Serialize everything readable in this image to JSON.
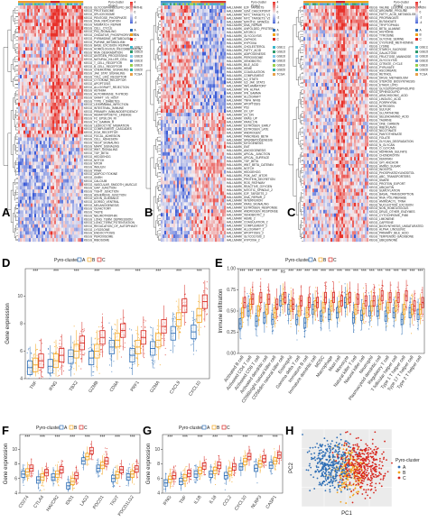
{
  "figure": {
    "panels": {
      "A": {
        "label": "A"
      },
      "B": {
        "label": "B"
      },
      "C": {
        "label": "C"
      },
      "D": {
        "label": "D"
      },
      "E": {
        "label": "E"
      },
      "F": {
        "label": "F"
      },
      "G": {
        "label": "G"
      },
      "H": {
        "label": "H"
      }
    },
    "heatmap_legend": {
      "row1": "Pyro-cluster",
      "row2": "Project",
      "scale": [
        "4",
        "2",
        "0",
        "-2",
        "-4"
      ],
      "cluster_keys": [
        "A",
        "B",
        "C"
      ],
      "project_keys": [
        "GSE13213",
        "GSE26939",
        "GSE30219",
        "GSE31210",
        "GSE37745",
        "GSE50081",
        "TCGA"
      ]
    },
    "heatmap_A_rows": [
      "KEGG_GLYCOSPHINGOLIPID_BIOSYNTHESIS",
      "KEGG_PROTEASOME",
      "KEGG_SPLICEOSOME",
      "KEGG_PENTOSE_PHOSPHATE",
      "KEGG_DNA_REPLICATION",
      "KEGG_MISMATCH_REPAIR",
      "KEGG_CELL_CYCLE",
      "KEGG_P53_SIGNALING",
      "KEGG_OXIDATIVE_PHOSPHORYLATION",
      "KEGG_PYRIMIDINE_METABOLISM",
      "KEGG_PURINE_METABOLISM",
      "KEGG_BASE_EXCISION_REPAIR",
      "KEGG_HOMOLOGOUS_RECOMBINATION",
      "KEGG_RNA_DEGRADATION",
      "KEGG_ANTIGEN_PROCESSING",
      "KEGG_NATURAL_KILLER_CELL",
      "KEGG_T_CELL_RECEPTOR",
      "KEGG_B_CELL_RECEPTOR",
      "KEGG_CHEMOKINE_SIGNALING",
      "KEGG_JAK_STAT_SIGNALING",
      "KEGG_TOLL_LIKE_RECEPTOR",
      "KEGG_CYTOKINE_RECEPTOR",
      "KEGG_APOPTOSIS",
      "KEGG_ALLOGRAFT_REJECTION",
      "KEGG_ASTHMA",
      "KEGG_AUTOIMMUNE_THYROID",
      "KEGG_GRAFT_VS_HOST",
      "KEGG_TYPE_I_DIABETES",
      "KEGG_LEISHMANIA_INFECTION",
      "KEGG_INTESTINAL_IMMUNE",
      "KEGG_PRIMARY_IMMUNODEFICIENCY",
      "KEGG_HEMATOPOIETIC_LINEAGE",
      "KEGG_FC_EPSILON_RI",
      "KEGG_FC_GAMMA_R",
      "KEGG_LEUKOCYTE_MIGRATION",
      "KEGG_COMPLEMENT_CASCADES",
      "KEGG_ECM_RECEPTOR",
      "KEGG_FOCAL_ADHESION",
      "KEGG_CELL_ADHESION",
      "KEGG_VEGF_SIGNALING",
      "KEGG_MAPK_SIGNALING",
      "KEGG_WNT_SIGNALING",
      "KEGG_TGF_BETA",
      "KEGG_HEDGEHOG",
      "KEGG_NOTCH",
      "KEGG_MTOR",
      "KEGG_INSULIN",
      "KEGG_PPAR",
      "KEGG_ADIPOCYTOKINE",
      "KEGG_GNRH",
      "KEGG_CALCIUM",
      "KEGG_VASCULAR_SMOOTH_MUSCLE",
      "KEGG_GAP_JUNCTION",
      "KEGG_TIGHT_JUNCTION",
      "KEGG_ADHERENS_JUNCTION",
      "KEGG_AXON_GUIDANCE",
      "KEGG_DORSO_VENTRAL",
      "KEGG_MELANOGENESIS",
      "KEGG_OLFACTORY",
      "KEGG_TASTE",
      "KEGG_NEUROTROPHIN",
      "KEGG_LONG_TERM_DEPRESSION",
      "KEGG_LONG_TERM_POTENTIATION",
      "KEGG_REGULATION_OF_AUTOPHAGY",
      "KEGG_LYSOSOME",
      "KEGG_ENDOCYTOSIS",
      "KEGG_PEROXISOME",
      "KEGG_RIBOSOME"
    ],
    "heatmap_B_rows": [
      "HALLMARK_E2F_TARGETS",
      "HALLMARK_G2M_CHECKPOINT",
      "HALLMARK_MYC_TARGETS_V1",
      "HALLMARK_MYC_TARGETS_V2",
      "HALLMARK_MITOTIC_SPINDLE",
      "HALLMARK_DNA_REPAIR",
      "HALLMARK_UNFOLDED_PROTEIN",
      "HALLMARK_MTORC1",
      "HALLMARK_GLYCOLYSIS",
      "HALLMARK_OXPHOS",
      "HALLMARK_HYPOXIA",
      "HALLMARK_CHOLESTEROL",
      "HALLMARK_FATTY_ACID",
      "HALLMARK_ADIPOGENESIS",
      "HALLMARK_PEROXISOME",
      "HALLMARK_XENOBIOTIC",
      "HALLMARK_BILE_ACID",
      "HALLMARK_HEME",
      "HALLMARK_COAGULATION",
      "HALLMARK_COMPLEMENT",
      "HALLMARK_IL2_STAT5",
      "HALLMARK_IL6_JAK_STAT3",
      "HALLMARK_INFLAMMATORY",
      "HALLMARK_IFN_ALPHA",
      "HALLMARK_IFN_GAMMA",
      "HALLMARK_ALLOGRAFT",
      "HALLMARK_TNFA_NFKB",
      "HALLMARK_APOPTOSIS",
      "HALLMARK_P53",
      "HALLMARK_UV_UP",
      "HALLMARK_UV_DN",
      "HALLMARK_KRAS_UP",
      "HALLMARK_KRAS_DN",
      "HALLMARK_ESTROGEN_EARLY",
      "HALLMARK_ESTROGEN_LATE",
      "HALLMARK_ANDROGEN",
      "HALLMARK_PANCREAS_BETA",
      "HALLMARK_SPERMATOGENESIS",
      "HALLMARK_MYOGENESIS",
      "HALLMARK_EMT",
      "HALLMARK_ANGIOGENESIS",
      "HALLMARK_APICAL_JUNCTION",
      "HALLMARK_APICAL_SURFACE",
      "HALLMARK_TGF_BETA",
      "HALLMARK_WNT_BETA_CATENIN",
      "HALLMARK_NOTCH",
      "HALLMARK_HEDGEHOG",
      "HALLMARK_PI3K_AKT_MTOR",
      "HALLMARK_PROTEIN_SECRETION",
      "HALLMARK_ROS_PATHWAY",
      "HALLMARK_REACTIVE_OXYGEN",
      "HALLMARK_MITOTIC_SPINDLE_2",
      "HALLMARK_E2F_TARGETS_2",
      "HALLMARK_DNA_REPAIR_2",
      "HALLMARK_INTERFERON",
      "HALLMARK_KRAS_SIGNALING",
      "HALLMARK_ESTROGEN_RESPONSE",
      "HALLMARK_ANDROGEN_RESPONSE",
      "HALLMARK_XENOBIOTIC_2",
      "HALLMARK_HEME_2",
      "HALLMARK_COAGULATION_2",
      "HALLMARK_COMPLEMENT_2",
      "HALLMARK_ALLOGRAFT_2",
      "HALLMARK_APOPTOSIS_2",
      "HALLMARK_GLYCOLYSIS_2",
      "HALLMARK_HYPOXIA_2"
    ],
    "heatmap_C_rows": [
      "KEGG_VALINE_LEUCINE_DEGRADATION",
      "KEGG_ARGININE_PROLINE",
      "KEGG_FATTY_ACID_METABOLISM",
      "KEGG_PROPANOATE",
      "KEGG_BUTANOATE",
      "KEGG_TRYPTOPHAN",
      "KEGG_BETA_ALANINE",
      "KEGG_HISTIDINE",
      "KEGG_TYROSINE",
      "KEGG_GLYCINE_SERINE",
      "KEGG_CYSTEINE_METHIONINE",
      "KEGG_LYSINE",
      "KEGG_STARCH_SUCROSE",
      "KEGG_GALACTOSE",
      "KEGG_FRUCTOSE_MANNOSE",
      "KEGG_GLYCOLYSIS",
      "KEGG_CITRATE_CYCLE",
      "KEGG_PYRUVATE",
      "KEGG_ASCORBATE",
      "KEGG_RETINOL",
      "KEGG_DRUG_METABOLISM",
      "KEGG_STEROID_BIOSYNTHESIS",
      "KEGG_ETHER_LIPID",
      "KEGG_GLYCEROPHOSPHOLIPID",
      "KEGG_SPHINGOLIPID",
      "KEGG_ARACHIDONIC_ACID",
      "KEGG_LINOLEIC_ACID",
      "KEGG_PORPHYRIN",
      "KEGG_NITROGEN",
      "KEGG_SULFUR",
      "KEGG_GLUTATHIONE",
      "KEGG_SELENOAMINO_ACID",
      "KEGG_TAURINE",
      "KEGG_ONE_CARBON",
      "KEGG_RIBOFLAVIN",
      "KEGG_NICOTINATE",
      "KEGG_PANTOTHENATE",
      "KEGG_FOLATE",
      "KEGG_GLYCAN_DEGRADATION",
      "KEGG_N_GLYCAN",
      "KEGG_O_GLYCAN",
      "KEGG_HEPARAN_SULFATE",
      "KEGG_CHONDROITIN",
      "KEGG_KERATAN",
      "KEGG_GPI_ANCHOR",
      "KEGG_AMINO_SUGAR",
      "KEGG_INOSITOL",
      "KEGG_PHOSPHATIDYLINOSITOL",
      "KEGG_ABC_TRANSPORTERS",
      "KEGG_SNARE",
      "KEGG_PROTEIN_EXPORT",
      "KEGG_UBIQUITIN",
      "KEGG_SUMOYLATION",
      "KEGG_BASAL_TRANSCRIPTION",
      "KEGG_RNA_POLYMERASE",
      "KEGG_AMINOACYL_TRNA",
      "KEGG_NUCLEOTIDE_EXCISION",
      "KEGG_NON_HOMOLOGOUS",
      "KEGG_DRUG_OTHER_ENZYMES",
      "KEGG_CYTOCHROME_P450",
      "KEGG_LIMONENE",
      "KEGG_CAFFEINE",
      "KEGG_BIOSYNTHESIS_UNSATURATED",
      "KEGG_ALPHA_LINOLENIC",
      "KEGG_PRIMARY_BILE_ACID",
      "KEGG_TERPENOID_BACKBONE",
      "KEGG_UBIQUINONE"
    ],
    "legend_box": {
      "title": "Pyro-cluster",
      "keys": [
        "A",
        "B",
        "C"
      ]
    },
    "colors": {
      "A": "#2e6eb5",
      "B": "#f2a31b",
      "C": "#d7261e",
      "heat_high": "#e8312a",
      "heat_low": "#3b5bd6",
      "heat_mid": "#f4f0f4"
    }
  },
  "chart_data": [
    {
      "panel": "D",
      "type": "box",
      "ylabel": "Gene expression",
      "ylim": [
        4,
        12
      ],
      "yticks": [
        "4",
        "6",
        "8",
        "10"
      ],
      "categories": [
        "TNF",
        "IFNG",
        "TBX2",
        "GZMB",
        "CD8A",
        "PRF1",
        "GZMA",
        "CXCL9",
        "CXCL10"
      ],
      "significance": [
        "***",
        "***",
        "***",
        "***",
        "***",
        "***",
        "***",
        "***",
        "***"
      ],
      "legend_title": "Pyro-cluster",
      "series": [
        {
          "name": "A",
          "median": [
            4.8,
            4.9,
            5.6,
            5.5,
            6.3,
            5.7,
            6.2,
            7.3,
            7.4
          ]
        },
        {
          "name": "B",
          "median": [
            5.0,
            5.3,
            6.0,
            6.0,
            6.8,
            6.3,
            6.8,
            8.3,
            8.6
          ]
        },
        {
          "name": "C",
          "median": [
            5.3,
            5.7,
            6.6,
            7.0,
            7.5,
            7.0,
            7.8,
            9.3,
            9.6
          ]
        }
      ]
    },
    {
      "panel": "E",
      "type": "box",
      "ylabel": "Immune infiltration",
      "ylim": [
        0,
        1
      ],
      "yticks": [
        "0.00",
        "0.25",
        "0.50",
        "0.75",
        "1.00"
      ],
      "categories": [
        "Activated B cell",
        "Activated CD4 T cell",
        "Activated CD8 T cell",
        "Activated dendritic cell",
        "CD56bright natural killer cell",
        "CD56dim natural killer cell",
        "Eosinophil",
        "Gamma delta T cell",
        "Immature B cell",
        "Immature dendritic cell",
        "MDSC",
        "Macrophage",
        "Mast cell",
        "Monocyte",
        "Natural killer T cell",
        "Natural killer cell",
        "Neutrophil",
        "Plasmacytoid dendritic cell",
        "Regulatory T cell",
        "T follicular helper cell",
        "Type 1 T helper cell",
        "Type 17 T helper cell",
        "Type 2 T helper cell"
      ],
      "significance": [
        "***",
        "***",
        "***",
        "***",
        "***",
        "ns",
        "***",
        "***",
        "***",
        "***",
        "***",
        "***",
        "***",
        "***",
        "***",
        "***",
        "***",
        "***",
        "***",
        "***",
        "***",
        "***",
        "***"
      ],
      "legend_title": "Pyro-cluster",
      "series": [
        {
          "name": "A",
          "median": [
            0.35,
            0.5,
            0.38,
            0.42,
            0.4,
            0.62,
            0.52,
            0.4,
            0.36,
            0.52,
            0.44,
            0.46,
            0.48,
            0.6,
            0.42,
            0.45,
            0.5,
            0.5,
            0.44,
            0.48,
            0.4,
            0.48,
            0.46
          ]
        },
        {
          "name": "B",
          "median": [
            0.48,
            0.58,
            0.5,
            0.52,
            0.48,
            0.64,
            0.56,
            0.5,
            0.48,
            0.56,
            0.54,
            0.56,
            0.55,
            0.64,
            0.52,
            0.53,
            0.56,
            0.58,
            0.54,
            0.56,
            0.52,
            0.52,
            0.52
          ]
        },
        {
          "name": "C",
          "median": [
            0.6,
            0.64,
            0.66,
            0.64,
            0.58,
            0.66,
            0.58,
            0.62,
            0.6,
            0.6,
            0.66,
            0.66,
            0.62,
            0.66,
            0.64,
            0.62,
            0.62,
            0.68,
            0.66,
            0.66,
            0.68,
            0.56,
            0.6
          ]
        }
      ]
    },
    {
      "panel": "F",
      "type": "box",
      "ylabel": "Gene expression",
      "ylim": [
        4,
        12
      ],
      "yticks": [
        "4",
        "6",
        "8",
        "10"
      ],
      "categories": [
        "CD274",
        "CTLA4",
        "HAVCR2",
        "IDO1",
        "LAG3",
        "PDCD1",
        "TIGIT",
        "PDCD1LG2"
      ],
      "significance": [
        "***",
        "***",
        "***",
        "***",
        "***",
        "***",
        "***",
        "***"
      ],
      "legend_title": "Pyro-cluster",
      "series": [
        {
          "name": "A",
          "median": [
            6.6,
            5.8,
            6.2,
            5.0,
            8.4,
            7.4,
            6.0,
            6.2
          ]
        },
        {
          "name": "B",
          "median": [
            6.9,
            6.2,
            6.6,
            5.6,
            9.0,
            7.8,
            6.5,
            6.6
          ]
        },
        {
          "name": "C",
          "median": [
            7.4,
            6.8,
            7.2,
            6.4,
            9.8,
            8.4,
            7.2,
            7.3
          ]
        }
      ]
    },
    {
      "panel": "G",
      "type": "box",
      "ylabel": "Gene expression",
      "ylim": [
        4,
        12
      ],
      "yticks": [
        "4",
        "6",
        "8",
        "10"
      ],
      "categories": [
        "IFNG",
        "TNF",
        "IL1B",
        "IL18",
        "CCL2",
        "CXCL10",
        "NLRP3",
        "CASP1"
      ],
      "significance": [
        "***",
        "***",
        "***",
        "***",
        "***",
        "***",
        "***",
        "***"
      ],
      "legend_title": "Pyro-cluster",
      "series": [
        {
          "name": "A",
          "median": [
            5.4,
            5.6,
            6.6,
            6.6,
            6.4,
            7.6,
            7.4,
            7.8
          ]
        },
        {
          "name": "B",
          "median": [
            5.9,
            6.1,
            7.1,
            7.1,
            7.0,
            8.3,
            8.0,
            8.4
          ]
        },
        {
          "name": "C",
          "median": [
            6.4,
            6.7,
            7.7,
            7.8,
            7.6,
            9.0,
            8.7,
            9.2
          ]
        }
      ]
    },
    {
      "panel": "H",
      "type": "scatter",
      "xlabel": "PC1",
      "ylabel": "PC2",
      "xlim": [
        -5,
        5
      ],
      "ylim": [
        -4,
        4
      ],
      "legend_title": "Pyro-cluster",
      "series": [
        {
          "name": "A",
          "center": [
            -1.8,
            0.4
          ]
        },
        {
          "name": "B",
          "center": [
            0.2,
            -0.4
          ]
        },
        {
          "name": "C",
          "center": [
            1.9,
            0.3
          ]
        }
      ]
    }
  ]
}
